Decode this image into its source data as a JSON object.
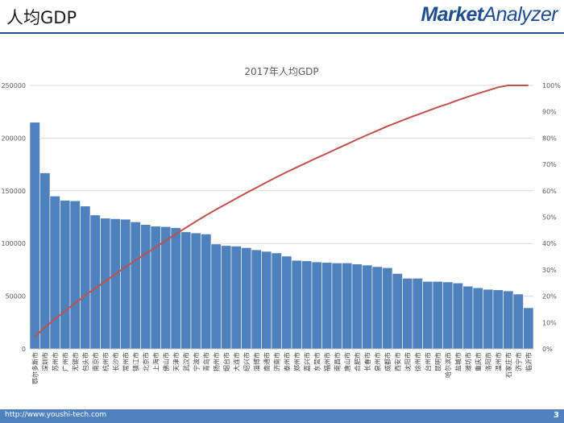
{
  "header": {
    "title": "人均GDP",
    "brand_bold": "Market",
    "brand_rest": "Analyzer"
  },
  "footer": {
    "url": "http://www.youshi-tech.com",
    "page_number": "3"
  },
  "colors": {
    "bar": "#4f81bd",
    "line": "#c0504d",
    "brand": "#1f4e8c"
  },
  "chart_data": {
    "type": "bar",
    "title": "2017年人均GDP",
    "xlabel": "",
    "ylabel": "",
    "ylim": [
      0,
      250000
    ],
    "y_ticks": [
      "0",
      "50000",
      "100000",
      "150000",
      "200000",
      "250000"
    ],
    "y2lim": [
      0,
      1
    ],
    "y2_ticks": [
      "0%",
      "10%",
      "20%",
      "30%",
      "40%",
      "50%",
      "60%",
      "70%",
      "80%",
      "90%",
      "100%"
    ],
    "grid": true,
    "categories": [
      "鄂尔多斯市",
      "深圳市",
      "苏州市",
      "广州市",
      "无锡市",
      "包头市",
      "南京市",
      "杭州市",
      "长沙市",
      "常州市",
      "镇江市",
      "北京市",
      "上海市",
      "佛山市",
      "天津市",
      "武汉市",
      "宁波市",
      "青岛市",
      "扬州市",
      "烟台市",
      "大连市",
      "绍兴市",
      "淄博市",
      "南通市",
      "济南市",
      "泰州市",
      "郑州市",
      "嘉兴市",
      "东营市",
      "福州市",
      "南昌市",
      "唐山市",
      "合肥市",
      "长春市",
      "泉州市",
      "成都市",
      "西安市",
      "沈阳市",
      "徐州市",
      "台州市",
      "昆明市",
      "哈尔滨市",
      "盐城市",
      "潍坊市",
      "重庆市",
      "洛阳市",
      "温州市",
      "石家庄市",
      "济宁市",
      "临沂市"
    ],
    "series": [
      {
        "type": "bar",
        "values": [
          215000,
          167000,
          145000,
          141000,
          140500,
          135500,
          127000,
          124000,
          123500,
          123000,
          120500,
          118000,
          116500,
          116000,
          115000,
          111000,
          110000,
          109000,
          99500,
          98000,
          97500,
          96000,
          94000,
          92500,
          91000,
          88000,
          84000,
          83500,
          82500,
          82000,
          81500,
          81500,
          80500,
          79500,
          78000,
          77000,
          71500,
          67000,
          67000,
          64000,
          64000,
          63500,
          62500,
          59500,
          58000,
          56500,
          56000,
          55000,
          52000,
          39000
        ]
      },
      {
        "type": "line",
        "axis": "secondary",
        "values": [
          0.046,
          0.082,
          0.113,
          0.144,
          0.174,
          0.203,
          0.23,
          0.257,
          0.284,
          0.31,
          0.336,
          0.361,
          0.386,
          0.411,
          0.436,
          0.46,
          0.484,
          0.507,
          0.529,
          0.55,
          0.571,
          0.592,
          0.612,
          0.632,
          0.652,
          0.671,
          0.689,
          0.707,
          0.725,
          0.742,
          0.76,
          0.777,
          0.795,
          0.812,
          0.828,
          0.845,
          0.86,
          0.875,
          0.889,
          0.903,
          0.917,
          0.93,
          0.944,
          0.957,
          0.969,
          0.981,
          0.993,
          1.0,
          1.0,
          1.0
        ]
      }
    ]
  }
}
